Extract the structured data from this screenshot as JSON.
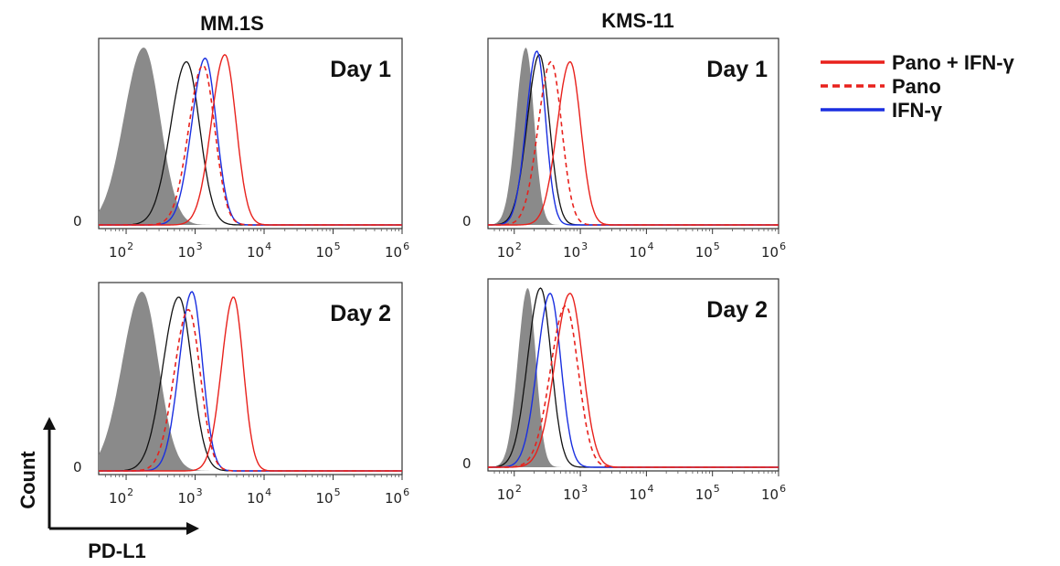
{
  "colors": {
    "pano_ifn": "#e8211c",
    "pano": "#e8211c",
    "ifn": "#1a2fe0",
    "control": "#111111",
    "isotype_fill": "#8a8a8a"
  },
  "legend": [
    {
      "label": "Pano + IFN-γ",
      "color": "#e8211c",
      "style": "solid"
    },
    {
      "label": "Pano",
      "color": "#e8211c",
      "style": "dashed"
    },
    {
      "label": "IFN-γ",
      "color": "#1a2fe0",
      "style": "solid"
    }
  ],
  "axes_labels": {
    "y": "Count",
    "x": "PD-L1"
  },
  "chart_data": [
    {
      "type": "histogram",
      "column_title": "MM.1S",
      "title": "Day 1",
      "x_scale": "log",
      "xlim": [
        40,
        1000000
      ],
      "xticks": [
        100,
        1000,
        10000,
        100000,
        1000000
      ],
      "ytick_label": "0",
      "isotype": {
        "peak": 180,
        "width": 0.25
      },
      "series": [
        {
          "name": "Pano + IFN-γ",
          "peak": 2700,
          "width": 0.17,
          "height": 0.96
        },
        {
          "name": "Pano",
          "peak": 1300,
          "width": 0.18,
          "height": 0.9
        },
        {
          "name": "IFN-γ",
          "peak": 1400,
          "width": 0.17,
          "height": 0.94
        },
        {
          "name": "control",
          "peak": 750,
          "width": 0.2,
          "height": 0.92
        }
      ]
    },
    {
      "type": "histogram",
      "column_title": "KMS-11",
      "title": "Day 1",
      "x_scale": "log",
      "xlim": [
        40,
        1000000
      ],
      "xticks": [
        100,
        1000,
        10000,
        100000,
        1000000
      ],
      "ytick_label": "0",
      "isotype": {
        "peak": 150,
        "width": 0.13
      },
      "series": [
        {
          "name": "Pano + IFN-γ",
          "peak": 700,
          "width": 0.17,
          "height": 0.92
        },
        {
          "name": "Pano",
          "peak": 360,
          "width": 0.17,
          "height": 0.92
        },
        {
          "name": "IFN-γ",
          "peak": 220,
          "width": 0.14,
          "height": 0.98
        },
        {
          "name": "control",
          "peak": 240,
          "width": 0.16,
          "height": 0.96
        }
      ]
    },
    {
      "type": "histogram",
      "column_title": "",
      "title": "Day 2",
      "x_scale": "log",
      "xlim": [
        40,
        1000000
      ],
      "xticks": [
        100,
        1000,
        10000,
        100000,
        1000000
      ],
      "ytick_label": "0",
      "isotype": {
        "peak": 170,
        "width": 0.25
      },
      "series": [
        {
          "name": "Pano + IFN-γ",
          "peak": 3600,
          "width": 0.15,
          "height": 0.97
        },
        {
          "name": "Pano",
          "peak": 800,
          "width": 0.18,
          "height": 0.9
        },
        {
          "name": "IFN-γ",
          "peak": 900,
          "width": 0.16,
          "height": 1.0
        },
        {
          "name": "control",
          "peak": 580,
          "width": 0.2,
          "height": 0.97
        }
      ]
    },
    {
      "type": "histogram",
      "column_title": "",
      "title": "Day 2",
      "x_scale": "log",
      "xlim": [
        40,
        1000000
      ],
      "xticks": [
        100,
        1000,
        10000,
        100000,
        1000000
      ],
      "ytick_label": "0",
      "isotype": {
        "peak": 160,
        "width": 0.13
      },
      "series": [
        {
          "name": "Pano + IFN-γ",
          "peak": 700,
          "width": 0.2,
          "height": 0.97
        },
        {
          "name": "Pano",
          "peak": 600,
          "width": 0.2,
          "height": 0.9
        },
        {
          "name": "IFN-γ",
          "peak": 350,
          "width": 0.17,
          "height": 0.97
        },
        {
          "name": "control",
          "peak": 250,
          "width": 0.17,
          "height": 1.0
        }
      ]
    }
  ]
}
